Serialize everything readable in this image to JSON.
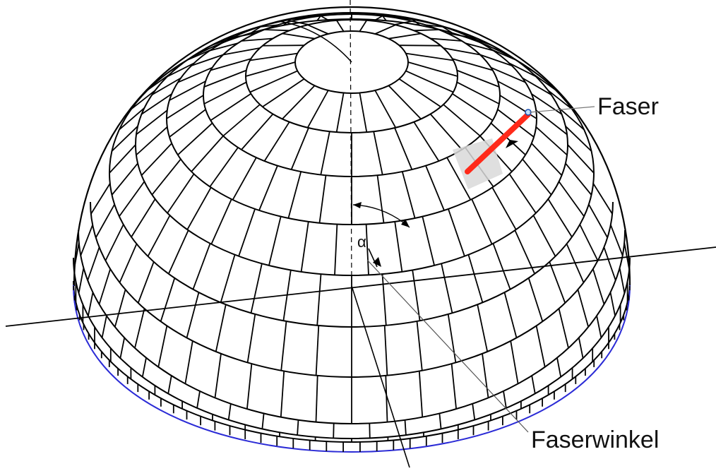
{
  "labels": {
    "fiber": "Faser",
    "fiber_angle": "Faserwinkel",
    "angle_symbol": "α"
  },
  "colors": {
    "background": "#ffffff",
    "mesh_line": "#000000",
    "base_outline": "#2b2bd6",
    "fiber": "#ff2a1a",
    "element_highlight": "#d9d9d9",
    "leader_line": "#666666"
  }
}
